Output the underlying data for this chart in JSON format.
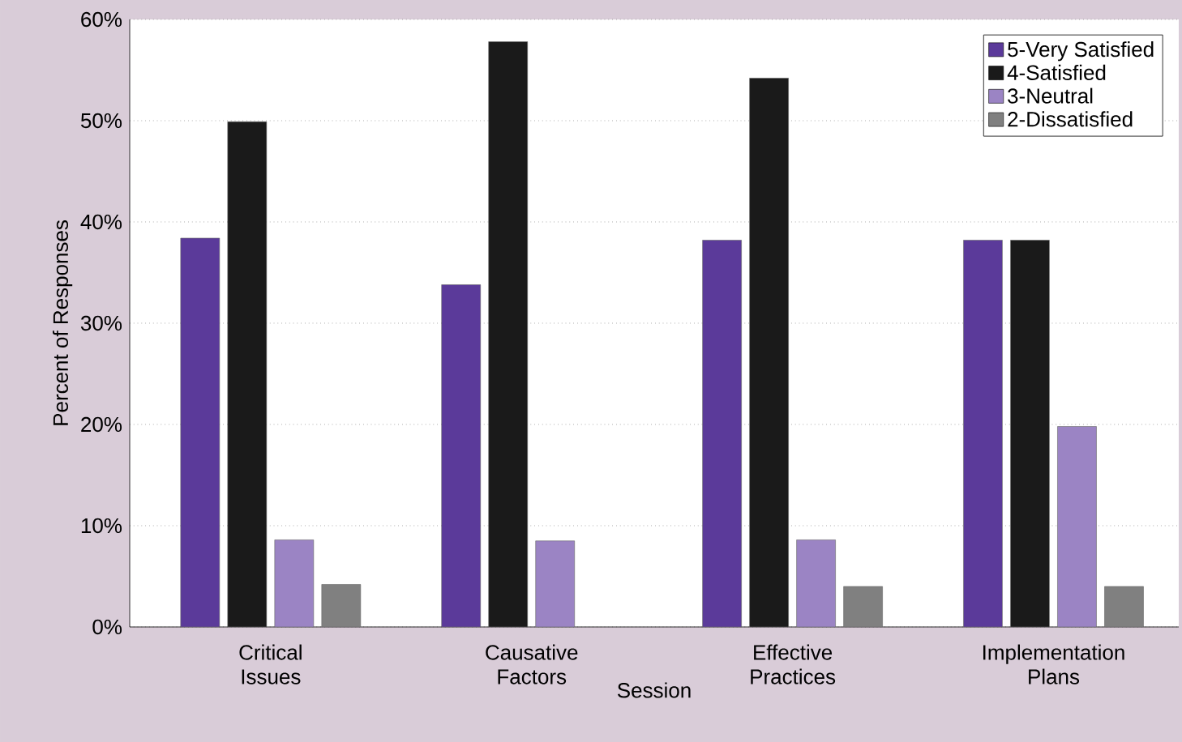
{
  "chart_data": {
    "type": "bar",
    "xlabel": "Session",
    "ylabel": "Percent of Responses",
    "categories": [
      "Critical Issues",
      "Causative Factors",
      "Effective Practices",
      "Implementation Plans"
    ],
    "series": [
      {
        "name": "5-Very Satisfied",
        "color": "#5b3a9a",
        "values": [
          38.4,
          33.8,
          38.2,
          38.2
        ]
      },
      {
        "name": "4-Satisfied",
        "color": "#1a1a1a",
        "values": [
          49.9,
          57.8,
          54.2,
          38.2
        ]
      },
      {
        "name": "3-Neutral",
        "color": "#9b84c4",
        "values": [
          8.6,
          8.5,
          8.6,
          19.8
        ]
      },
      {
        "name": "2-Dissatisfied",
        "color": "#808080",
        "values": [
          4.2,
          null,
          4.0,
          4.0
        ]
      }
    ],
    "ylim": [
      0,
      60
    ],
    "yticks": [
      {
        "value": 0,
        "label": "0%"
      },
      {
        "value": 10,
        "label": "10%"
      },
      {
        "value": 20,
        "label": "20%"
      },
      {
        "value": 30,
        "label": "30%"
      },
      {
        "value": 40,
        "label": "40%"
      },
      {
        "value": 50,
        "label": "50%"
      },
      {
        "value": 60,
        "label": "60%"
      }
    ],
    "grid": "y",
    "legend": "top right"
  }
}
